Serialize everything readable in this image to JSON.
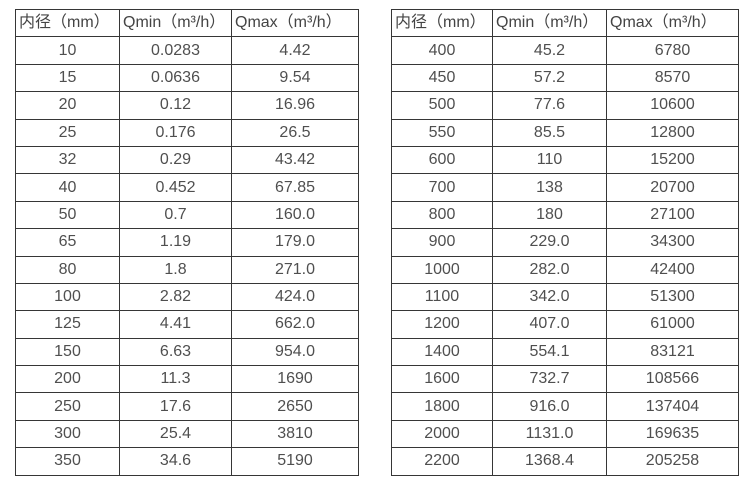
{
  "page": {
    "background_color": "#ffffff",
    "border_color": "#363636",
    "text_color": "#4d4d4d"
  },
  "tables": [
    {
      "name": "flow-table-small-diameters",
      "headers": [
        "内径（mm）",
        "Qmin（m³/h）",
        "Qmax（m³/h）"
      ],
      "rows": [
        [
          "10",
          "0.0283",
          "4.42"
        ],
        [
          "15",
          "0.0636",
          "9.54"
        ],
        [
          "20",
          "0.12",
          "16.96"
        ],
        [
          "25",
          "0.176",
          "26.5"
        ],
        [
          "32",
          "0.29",
          "43.42"
        ],
        [
          "40",
          "0.452",
          "67.85"
        ],
        [
          "50",
          "0.7",
          "160.0"
        ],
        [
          "65",
          "1.19",
          "179.0"
        ],
        [
          "80",
          "1.8",
          "271.0"
        ],
        [
          "100",
          "2.82",
          "424.0"
        ],
        [
          "125",
          "4.41",
          "662.0"
        ],
        [
          "150",
          "6.63",
          "954.0"
        ],
        [
          "200",
          "11.3",
          "1690"
        ],
        [
          "250",
          "17.6",
          "2650"
        ],
        [
          "300",
          "25.4",
          "3810"
        ],
        [
          "350",
          "34.6",
          "5190"
        ]
      ]
    },
    {
      "name": "flow-table-large-diameters",
      "headers": [
        "内径（mm）",
        "Qmin（m³/h）",
        "Qmax（m³/h）"
      ],
      "rows": [
        [
          "400",
          "45.2",
          "6780"
        ],
        [
          "450",
          "57.2",
          "8570"
        ],
        [
          "500",
          "77.6",
          "10600"
        ],
        [
          "550",
          "85.5",
          "12800"
        ],
        [
          "600",
          "110",
          "15200"
        ],
        [
          "700",
          "138",
          "20700"
        ],
        [
          "800",
          "180",
          "27100"
        ],
        [
          "900",
          "229.0",
          "34300"
        ],
        [
          "1000",
          "282.0",
          "42400"
        ],
        [
          "1100",
          "342.0",
          "51300"
        ],
        [
          "1200",
          "407.0",
          "61000"
        ],
        [
          "1400",
          "554.1",
          "83121"
        ],
        [
          "1600",
          "732.7",
          "108566"
        ],
        [
          "1800",
          "916.0",
          "137404"
        ],
        [
          "2000",
          "1131.0",
          "169635"
        ],
        [
          "2200",
          "1368.4",
          "205258"
        ]
      ]
    }
  ]
}
